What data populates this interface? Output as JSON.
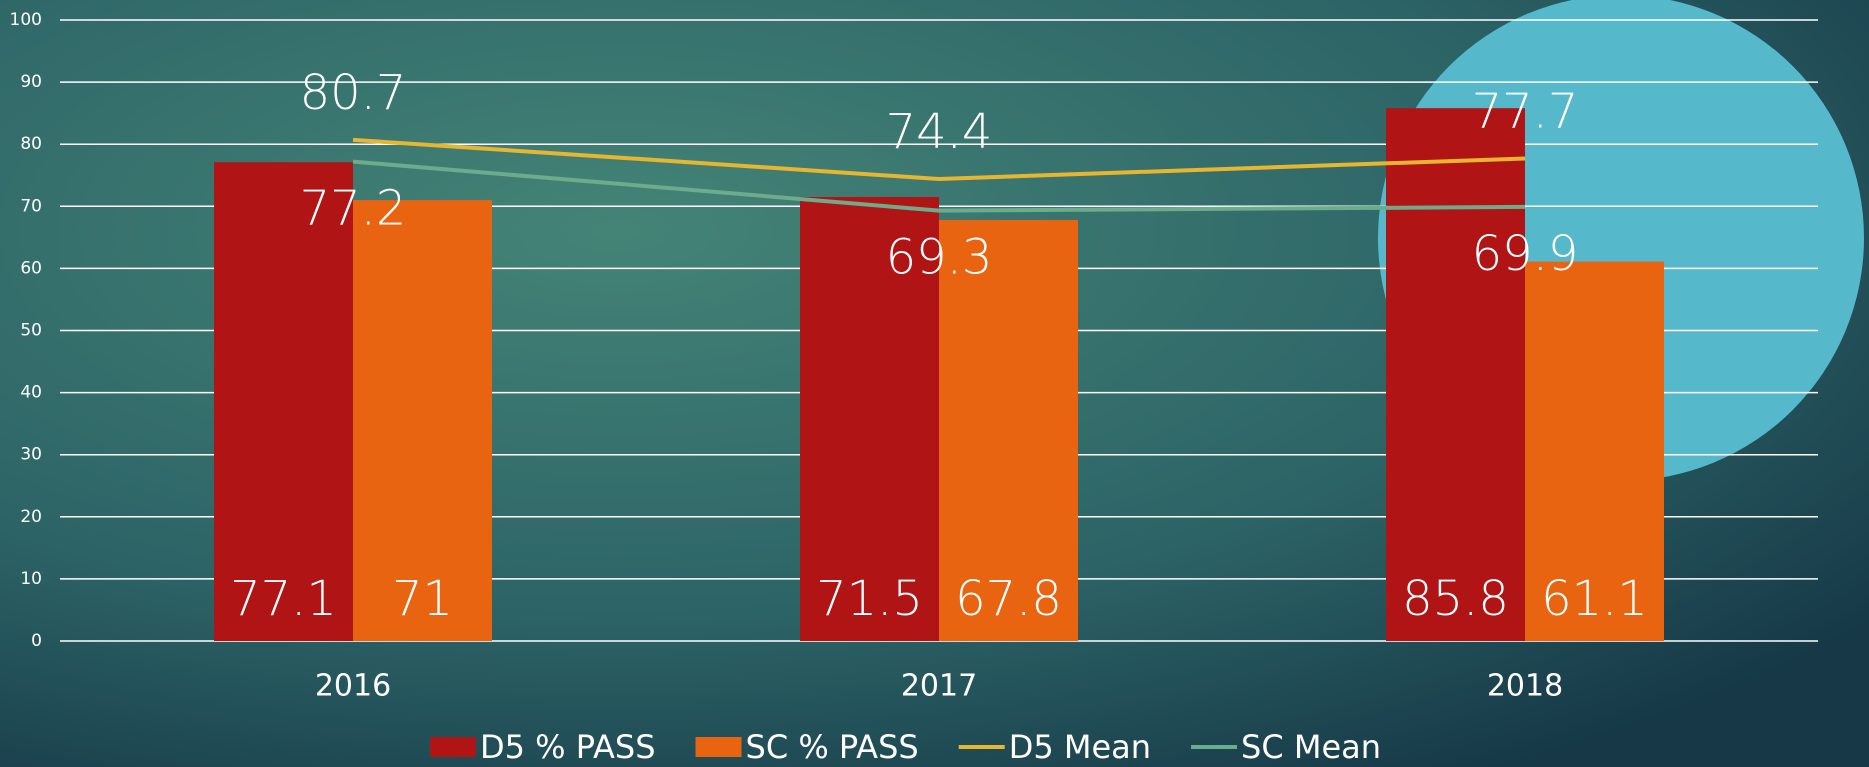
{
  "chart_data": {
    "type": "bar_line",
    "categories": [
      "2016",
      "2017",
      "2018"
    ],
    "series": [
      {
        "name": "D5 % PASS",
        "color": "#b01414",
        "type": "bar",
        "values": [
          77.1,
          71.5,
          85.8
        ]
      },
      {
        "name": "SC % PASS",
        "color": "#e86411",
        "type": "bar",
        "values": [
          71,
          67.8,
          61.1
        ]
      },
      {
        "name": "D5 Mean",
        "color": "#e6b631",
        "type": "line",
        "values": [
          80.7,
          74.4,
          77.7
        ]
      },
      {
        "name": "SC Mean",
        "color": "#6cab8b",
        "type": "line",
        "values": [
          77.2,
          69.3,
          69.9
        ]
      }
    ],
    "ylim": [
      0,
      100
    ],
    "yticks": [
      0,
      10,
      20,
      30,
      40,
      50,
      60,
      70,
      80,
      90,
      100
    ],
    "grid": true,
    "legend": "bottom"
  }
}
